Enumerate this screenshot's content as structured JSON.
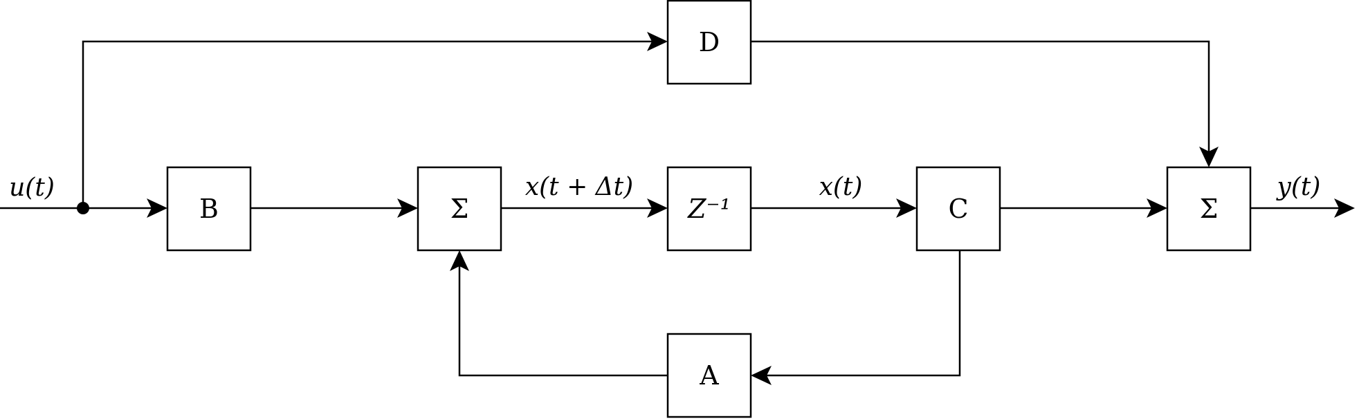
{
  "diagram": {
    "blocks": {
      "d": {
        "label": "D"
      },
      "b": {
        "label": "B"
      },
      "sum_main": {
        "label": "Σ"
      },
      "delay": {
        "label": "Z⁻¹"
      },
      "c": {
        "label": "C"
      },
      "sum_out": {
        "label": "Σ"
      },
      "a": {
        "label": "A"
      }
    },
    "signals": {
      "input": "u(t)",
      "next_state": "x(t + Δt)",
      "state": "x(t)",
      "output": "y(t)"
    },
    "colors": {
      "line": "#000000",
      "block_fill": "#ffffff",
      "background": "#ffffff"
    }
  }
}
